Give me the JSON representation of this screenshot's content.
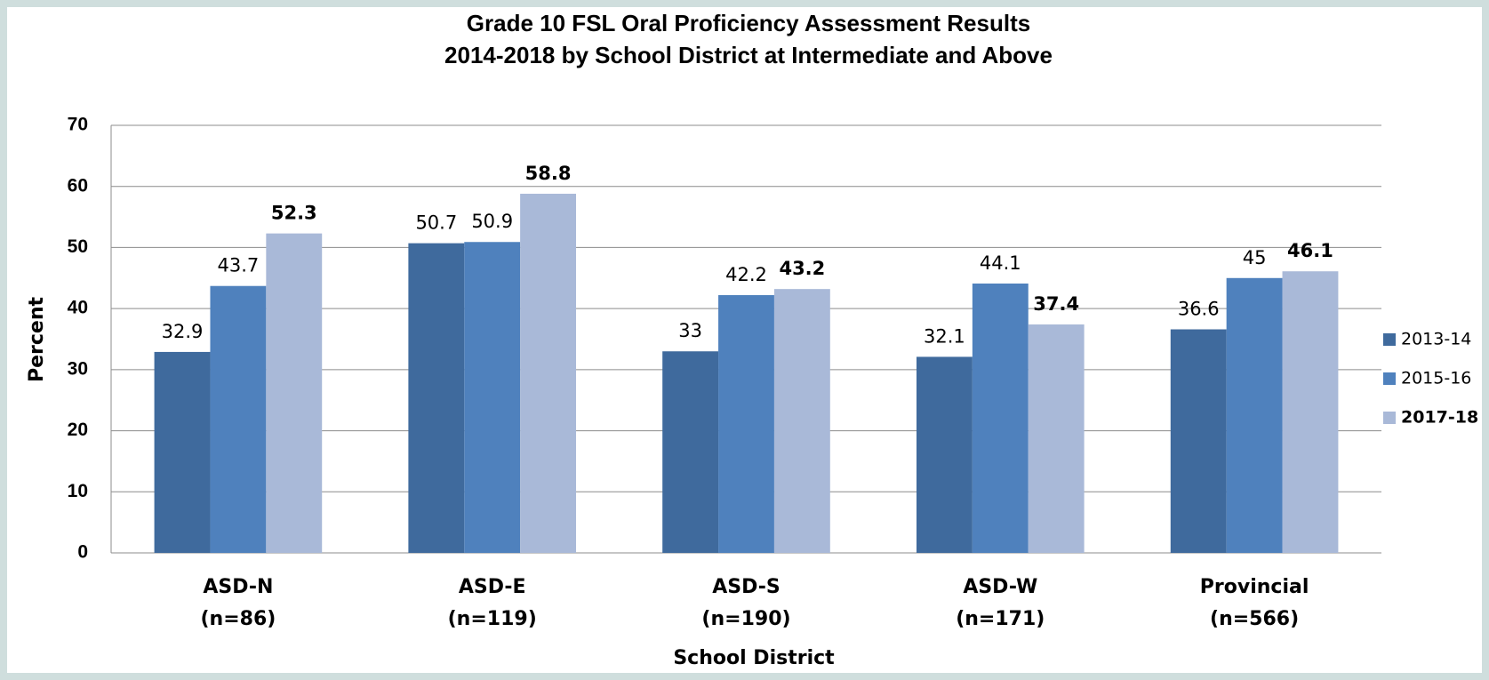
{
  "chart_data": {
    "type": "bar",
    "title": [
      "Grade 10 FSL Oral Proficiency Assessment Results",
      "2014-2018 by School District at Intermediate and Above"
    ],
    "x_label": "School District",
    "y_label": "Percent",
    "categories": [
      [
        "ASD-N",
        "(n=86)"
      ],
      [
        "ASD-E",
        "(n=119)"
      ],
      [
        "ASD-S",
        "(n=190)"
      ],
      [
        "ASD-W",
        "(n=171)"
      ],
      [
        "Provincial",
        "(n=566)"
      ]
    ],
    "series": [
      {
        "name": "2013-14",
        "color": "#3f6a9d",
        "bold": false,
        "values": [
          32.9,
          50.7,
          33,
          32.1,
          36.6
        ]
      },
      {
        "name": "2015-16",
        "color": "#4f81bd",
        "bold": false,
        "values": [
          43.7,
          50.9,
          42.2,
          44.1,
          45
        ]
      },
      {
        "name": "2017-18",
        "color": "#a9b9d8",
        "bold": true,
        "values": [
          52.3,
          58.8,
          43.2,
          37.4,
          46.1
        ]
      }
    ],
    "ylim": [
      0,
      70
    ],
    "yticks": [
      0,
      10,
      20,
      30,
      40,
      50,
      60,
      70
    ],
    "grid": true,
    "legend": "right"
  }
}
